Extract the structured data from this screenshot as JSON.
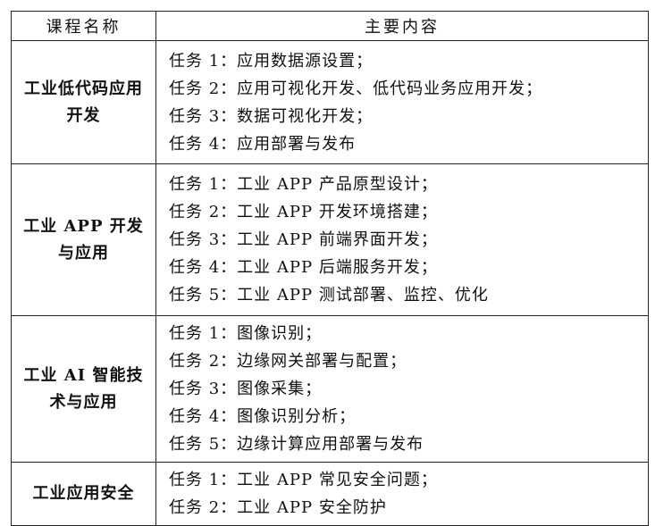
{
  "header": {
    "course_name": "课程名称",
    "main_content": "主要内容"
  },
  "rows": [
    {
      "name": "工业低代码应用开发",
      "tasks": [
        "任务 1：应用数据源设置；",
        "任务 2：应用可视化开发、低代码业务应用开发；",
        "任务 3：数据可视化开发；",
        "任务 4：应用部署与发布"
      ]
    },
    {
      "name": "工业 APP 开发与应用",
      "tasks": [
        "任务 1：工业 APP 产品原型设计；",
        "任务 2：工业 APP 开发环境搭建；",
        "任务 3：工业 APP 前端界面开发；",
        "任务 4：工业 APP 后端服务开发；",
        "任务 5：工业 APP 测试部署、监控、优化"
      ]
    },
    {
      "name": "工业 AI 智能技术与应用",
      "tasks": [
        "任务 1：图像识别；",
        "任务 2：边缘网关部署与配置；",
        "任务 3：图像采集；",
        "任务 4：图像识别分析；",
        "任务 5：边缘计算应用部署与发布"
      ]
    },
    {
      "name": "工业应用安全",
      "tasks": [
        "任务 1：工业 APP 常见安全问题；",
        "任务 2：工业 APP 安全防护"
      ]
    }
  ]
}
